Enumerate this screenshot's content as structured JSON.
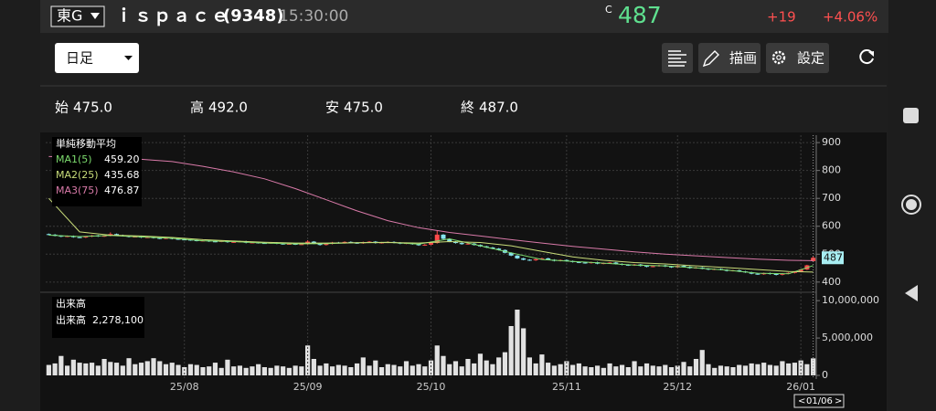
{
  "header": {
    "exchange": "東G",
    "name": "ｉｓｐａｃｅ",
    "code": "(9348)",
    "time": "15:30:00",
    "price_mark": "C",
    "price": "487",
    "change": "+19",
    "change_pct": "+4.06%"
  },
  "toolbar": {
    "period": "日足",
    "draw": "描画",
    "settings": "設定"
  },
  "ohlc_summary": [
    {
      "label": "始",
      "value": "475.0"
    },
    {
      "label": "高",
      "value": "492.0"
    },
    {
      "label": "安",
      "value": "475.0"
    },
    {
      "label": "終",
      "value": "487.0"
    }
  ],
  "chart_data": [
    {
      "type": "candlestick",
      "title": "単純移動平均",
      "up_color": "#ff4b4b",
      "down_color": "#86e4ee",
      "categories": [
        null,
        null,
        null,
        null,
        null,
        null,
        null,
        null,
        null,
        null,
        null,
        null,
        null,
        null,
        null,
        null,
        null,
        null,
        null,
        null,
        null,
        null,
        "25/08",
        null,
        null,
        null,
        null,
        null,
        null,
        null,
        null,
        null,
        null,
        null,
        null,
        null,
        null,
        null,
        null,
        null,
        null,
        null,
        "25/09",
        null,
        null,
        null,
        null,
        null,
        null,
        null,
        null,
        null,
        null,
        null,
        null,
        null,
        null,
        null,
        null,
        null,
        null,
        null,
        "25/10",
        null,
        null,
        null,
        null,
        null,
        null,
        null,
        null,
        null,
        null,
        null,
        null,
        null,
        null,
        null,
        null,
        null,
        null,
        null,
        null,
        null,
        "25/11",
        null,
        null,
        null,
        null,
        null,
        null,
        null,
        null,
        null,
        null,
        null,
        null,
        null,
        null,
        null,
        null,
        null,
        "25/12",
        null,
        null,
        null,
        null,
        null,
        null,
        null,
        null,
        null,
        null,
        null,
        null,
        null,
        null,
        null,
        null,
        null,
        null,
        null,
        "26/01",
        null,
        null
      ],
      "ohlc": [
        [
          572,
          574,
          568,
          570
        ],
        [
          570,
          572,
          564,
          566
        ],
        [
          566,
          568,
          561,
          563
        ],
        [
          563,
          567,
          561,
          565
        ],
        [
          565,
          567,
          559,
          561
        ],
        [
          561,
          563,
          558,
          560
        ],
        [
          560,
          565,
          558,
          563
        ],
        [
          563,
          569,
          561,
          567
        ],
        [
          567,
          569,
          562,
          564
        ],
        [
          564,
          568,
          562,
          566
        ],
        [
          566,
          578,
          564,
          572
        ],
        [
          572,
          574,
          566,
          568
        ],
        [
          568,
          570,
          563,
          565
        ],
        [
          565,
          567,
          560,
          562
        ],
        [
          562,
          565,
          560,
          563
        ],
        [
          563,
          565,
          558,
          560
        ],
        [
          560,
          563,
          558,
          561
        ],
        [
          561,
          563,
          556,
          558
        ],
        [
          558,
          560,
          554,
          556
        ],
        [
          556,
          560,
          554,
          558
        ],
        [
          558,
          560,
          553,
          555
        ],
        [
          555,
          557,
          551,
          553
        ],
        [
          553,
          555,
          550,
          552
        ],
        [
          552,
          554,
          548,
          550
        ],
        [
          550,
          552,
          546,
          548
        ],
        [
          548,
          551,
          546,
          549
        ],
        [
          549,
          551,
          544,
          546
        ],
        [
          546,
          548,
          543,
          545
        ],
        [
          545,
          549,
          543,
          547
        ],
        [
          547,
          549,
          541,
          543
        ],
        [
          543,
          546,
          541,
          544
        ],
        [
          544,
          548,
          542,
          546
        ],
        [
          546,
          548,
          539,
          541
        ],
        [
          541,
          544,
          539,
          542
        ],
        [
          542,
          544,
          538,
          540
        ],
        [
          540,
          542,
          537,
          539
        ],
        [
          539,
          543,
          537,
          541
        ],
        [
          541,
          543,
          536,
          538
        ],
        [
          538,
          540,
          534,
          536
        ],
        [
          536,
          539,
          534,
          537
        ],
        [
          537,
          539,
          533,
          535
        ],
        [
          535,
          538,
          533,
          536
        ],
        [
          536,
          550,
          534,
          545
        ],
        [
          545,
          547,
          536,
          538
        ],
        [
          538,
          540,
          531,
          533
        ],
        [
          533,
          539,
          531,
          537
        ],
        [
          537,
          544,
          535,
          542
        ],
        [
          542,
          544,
          538,
          540
        ],
        [
          540,
          546,
          538,
          544
        ],
        [
          544,
          546,
          539,
          541
        ],
        [
          541,
          543,
          537,
          539
        ],
        [
          539,
          545,
          537,
          543
        ],
        [
          543,
          547,
          541,
          545
        ],
        [
          545,
          547,
          538,
          540
        ],
        [
          540,
          544,
          538,
          542
        ],
        [
          542,
          546,
          540,
          544
        ],
        [
          544,
          546,
          539,
          541
        ],
        [
          541,
          543,
          536,
          538
        ],
        [
          538,
          542,
          536,
          540
        ],
        [
          540,
          542,
          534,
          536
        ],
        [
          536,
          538,
          530,
          532
        ],
        [
          532,
          536,
          530,
          534
        ],
        [
          534,
          542,
          532,
          540
        ],
        [
          540,
          585,
          538,
          570
        ],
        [
          570,
          572,
          553,
          555
        ],
        [
          555,
          557,
          543,
          545
        ],
        [
          545,
          547,
          538,
          540
        ],
        [
          540,
          542,
          534,
          536
        ],
        [
          536,
          540,
          534,
          538
        ],
        [
          538,
          540,
          531,
          533
        ],
        [
          533,
          535,
          526,
          528
        ],
        [
          528,
          530,
          522,
          524
        ],
        [
          524,
          526,
          518,
          520
        ],
        [
          520,
          522,
          513,
          515
        ],
        [
          515,
          517,
          503,
          505
        ],
        [
          505,
          507,
          493,
          495
        ],
        [
          495,
          497,
          483,
          485
        ],
        [
          485,
          487,
          478,
          480
        ],
        [
          480,
          482,
          476,
          478
        ],
        [
          478,
          484,
          476,
          482
        ],
        [
          482,
          487,
          480,
          485
        ],
        [
          485,
          487,
          478,
          480
        ],
        [
          480,
          482,
          474,
          476
        ],
        [
          476,
          481,
          474,
          479
        ],
        [
          479,
          481,
          473,
          475
        ],
        [
          475,
          477,
          470,
          472
        ],
        [
          472,
          474,
          468,
          470
        ],
        [
          470,
          472,
          466,
          468
        ],
        [
          468,
          473,
          466,
          471
        ],
        [
          471,
          473,
          464,
          466
        ],
        [
          466,
          470,
          464,
          468
        ],
        [
          468,
          472,
          466,
          470
        ],
        [
          470,
          472,
          463,
          465
        ],
        [
          465,
          467,
          460,
          462
        ],
        [
          462,
          464,
          458,
          460
        ],
        [
          460,
          465,
          458,
          463
        ],
        [
          463,
          465,
          456,
          458
        ],
        [
          458,
          460,
          453,
          455
        ],
        [
          455,
          459,
          453,
          457
        ],
        [
          457,
          462,
          455,
          460
        ],
        [
          460,
          462,
          454,
          456
        ],
        [
          456,
          458,
          451,
          453
        ],
        [
          453,
          460,
          451,
          458
        ],
        [
          458,
          460,
          453,
          455
        ],
        [
          455,
          457,
          448,
          450
        ],
        [
          450,
          454,
          448,
          452
        ],
        [
          452,
          454,
          446,
          448
        ],
        [
          448,
          450,
          443,
          445
        ],
        [
          445,
          449,
          443,
          447
        ],
        [
          447,
          449,
          442,
          444
        ],
        [
          444,
          446,
          438,
          440
        ],
        [
          440,
          444,
          438,
          442
        ],
        [
          442,
          444,
          436,
          438
        ],
        [
          438,
          440,
          433,
          435
        ],
        [
          435,
          437,
          428,
          430
        ],
        [
          430,
          432,
          426,
          428
        ],
        [
          428,
          434,
          426,
          432
        ],
        [
          432,
          434,
          427,
          429
        ],
        [
          429,
          431,
          424,
          426
        ],
        [
          426,
          432,
          424,
          430
        ],
        [
          430,
          435,
          428,
          433
        ],
        [
          433,
          439,
          431,
          437
        ],
        [
          437,
          447,
          435,
          445
        ],
        [
          445,
          462,
          443,
          460
        ],
        [
          475,
          492,
          475,
          487
        ]
      ],
      "series": [
        {
          "name": "MA1(5)",
          "color": "#7ddc6e",
          "current": "459.20",
          "x": [
            0,
            5,
            10,
            15,
            20,
            25,
            30,
            35,
            40,
            45,
            50,
            55,
            60,
            65,
            70,
            75,
            80,
            85,
            90,
            95,
            100,
            105,
            110,
            115,
            120,
            124
          ],
          "values": [
            568,
            563,
            567,
            562,
            557,
            548,
            545,
            540,
            537,
            538,
            541,
            543,
            536,
            555,
            530,
            505,
            481,
            474,
            468,
            461,
            458,
            451,
            443,
            432,
            430,
            459.2
          ]
        },
        {
          "name": "MA2(25)",
          "color": "#c9dd7a",
          "current": "435.68",
          "x": [
            0,
            5,
            10,
            15,
            20,
            25,
            30,
            35,
            40,
            45,
            50,
            55,
            60,
            65,
            70,
            75,
            80,
            85,
            90,
            95,
            100,
            105,
            110,
            115,
            120,
            124
          ],
          "values": [
            700,
            580,
            568,
            565,
            560,
            552,
            547,
            543,
            540,
            540,
            541,
            542,
            540,
            545,
            542,
            530,
            510,
            490,
            478,
            470,
            465,
            458,
            452,
            445,
            438,
            435.68
          ]
        },
        {
          "name": "MA3(75)",
          "color": "#d97aa9",
          "current": "476.87",
          "x": [
            0,
            5,
            10,
            15,
            20,
            25,
            30,
            35,
            40,
            45,
            50,
            55,
            60,
            65,
            70,
            75,
            80,
            85,
            90,
            95,
            100,
            105,
            110,
            115,
            120,
            124
          ],
          "values": [
            850,
            848,
            845,
            840,
            832,
            815,
            795,
            770,
            735,
            695,
            655,
            620,
            595,
            578,
            565,
            552,
            540,
            528,
            518,
            508,
            500,
            494,
            488,
            482,
            478,
            476.87
          ]
        }
      ],
      "ylim": [
        370,
        920
      ],
      "yticks": [
        400,
        500,
        600,
        700,
        800,
        900
      ],
      "grid": true,
      "cursor_date": "01/06"
    },
    {
      "type": "bar",
      "title": "出来高",
      "color": "#e2e2e2",
      "current": "2,278,100",
      "values": [
        1400000,
        1600000,
        2600000,
        1300000,
        2100000,
        1700000,
        1600000,
        1700000,
        1300000,
        2200000,
        1800000,
        1700000,
        1300000,
        2300000,
        1500000,
        1700000,
        1900000,
        2300000,
        1900000,
        1500000,
        1700000,
        1400000,
        1100000,
        1500000,
        1400000,
        1100000,
        1200000,
        1700000,
        1000000,
        2100000,
        1200000,
        1300000,
        1000000,
        1200000,
        1500000,
        1100000,
        1000000,
        1300000,
        1200000,
        1000000,
        1300000,
        1200000,
        4000000,
        2200000,
        1300000,
        1600000,
        1200000,
        1400000,
        1300000,
        1100000,
        1600000,
        2400000,
        1300000,
        2000000,
        1100000,
        1500000,
        1400000,
        1200000,
        1900000,
        1300000,
        1500000,
        1200000,
        2000000,
        4000000,
        2600000,
        1500000,
        1900000,
        1200000,
        2200000,
        1600000,
        2900000,
        2000000,
        1500000,
        2400000,
        3100000,
        6600000,
        8800000,
        6300000,
        2400000,
        1600000,
        2800000,
        1700000,
        1300000,
        1500000,
        1900000,
        1400000,
        1600000,
        1200000,
        1100000,
        1300000,
        1000000,
        1600000,
        1200000,
        1400000,
        1100000,
        1900000,
        1200000,
        1600000,
        1300000,
        1200000,
        1400000,
        1100000,
        1300000,
        1800000,
        1200000,
        2200000,
        3400000,
        1500000,
        1000000,
        1300000,
        1200000,
        1100000,
        1400000,
        1300000,
        1600000,
        1500000,
        1700000,
        1400000,
        1300000,
        1900000,
        1600000,
        1700000,
        2000000,
        1500000,
        2278100
      ],
      "ylim": [
        0,
        11000000
      ],
      "yticks": [
        0,
        {
          "value": 5000000,
          "label": "5,000,000"
        },
        {
          "value": 10000000,
          "label": "10,000,000"
        }
      ]
    }
  ]
}
